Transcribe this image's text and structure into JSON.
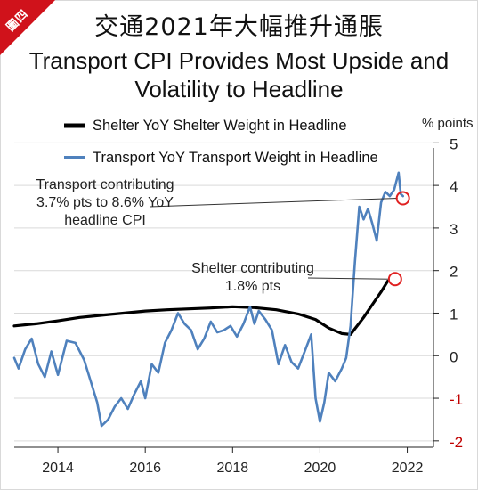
{
  "badge": "圖四",
  "chart_data": {
    "type": "line",
    "title_cn": "交通2021年大幅推升通脹",
    "title": "Transport CPI Provides Most Upside and Volatility to Headline",
    "ylabel": "% points",
    "ylim": [
      -2,
      5
    ],
    "xlim": [
      2013.0,
      2022.6
    ],
    "yticks": [
      "5",
      "4",
      "3",
      "2",
      "1",
      "0",
      "-1",
      "-2"
    ],
    "xticks": [
      "2014",
      "2016",
      "2018",
      "2020",
      "2022"
    ],
    "grid": true,
    "legend_position": "top-left",
    "colors": {
      "shelter": "#000000",
      "transport": "#4f81bd",
      "highlight": "#e02020",
      "negative_tick": "#c00000"
    },
    "series": [
      {
        "name": "Shelter YoY Shelter Weight in Headline",
        "key": "shelter",
        "points": [
          [
            2013.0,
            0.7
          ],
          [
            2013.5,
            0.75
          ],
          [
            2014.0,
            0.82
          ],
          [
            2014.5,
            0.9
          ],
          [
            2015.0,
            0.95
          ],
          [
            2015.5,
            1.0
          ],
          [
            2016.0,
            1.05
          ],
          [
            2016.5,
            1.08
          ],
          [
            2017.0,
            1.1
          ],
          [
            2017.5,
            1.12
          ],
          [
            2018.0,
            1.15
          ],
          [
            2018.5,
            1.13
          ],
          [
            2019.0,
            1.08
          ],
          [
            2019.5,
            0.98
          ],
          [
            2019.9,
            0.85
          ],
          [
            2020.2,
            0.65
          ],
          [
            2020.5,
            0.52
          ],
          [
            2020.7,
            0.5
          ],
          [
            2021.0,
            0.9
          ],
          [
            2021.2,
            1.2
          ],
          [
            2021.4,
            1.5
          ],
          [
            2021.55,
            1.75
          ]
        ]
      },
      {
        "name": "Transport YoY Transport Weight in Headline",
        "key": "transport",
        "points": [
          [
            2013.0,
            -0.05
          ],
          [
            2013.1,
            -0.3
          ],
          [
            2013.25,
            0.15
          ],
          [
            2013.4,
            0.4
          ],
          [
            2013.55,
            -0.2
          ],
          [
            2013.7,
            -0.5
          ],
          [
            2013.85,
            0.1
          ],
          [
            2014.0,
            -0.45
          ],
          [
            2014.2,
            0.35
          ],
          [
            2014.4,
            0.3
          ],
          [
            2014.6,
            -0.1
          ],
          [
            2014.75,
            -0.6
          ],
          [
            2014.9,
            -1.1
          ],
          [
            2015.0,
            -1.65
          ],
          [
            2015.15,
            -1.5
          ],
          [
            2015.3,
            -1.2
          ],
          [
            2015.45,
            -1.0
          ],
          [
            2015.6,
            -1.25
          ],
          [
            2015.75,
            -0.9
          ],
          [
            2015.9,
            -0.6
          ],
          [
            2016.0,
            -1.0
          ],
          [
            2016.15,
            -0.2
          ],
          [
            2016.3,
            -0.4
          ],
          [
            2016.45,
            0.3
          ],
          [
            2016.6,
            0.6
          ],
          [
            2016.75,
            1.0
          ],
          [
            2016.9,
            0.75
          ],
          [
            2017.05,
            0.6
          ],
          [
            2017.2,
            0.15
          ],
          [
            2017.35,
            0.4
          ],
          [
            2017.5,
            0.8
          ],
          [
            2017.65,
            0.55
          ],
          [
            2017.8,
            0.6
          ],
          [
            2017.95,
            0.7
          ],
          [
            2018.1,
            0.45
          ],
          [
            2018.25,
            0.75
          ],
          [
            2018.4,
            1.15
          ],
          [
            2018.5,
            0.75
          ],
          [
            2018.6,
            1.05
          ],
          [
            2018.75,
            0.85
          ],
          [
            2018.9,
            0.6
          ],
          [
            2019.05,
            -0.2
          ],
          [
            2019.2,
            0.25
          ],
          [
            2019.35,
            -0.15
          ],
          [
            2019.5,
            -0.3
          ],
          [
            2019.65,
            0.1
          ],
          [
            2019.8,
            0.5
          ],
          [
            2019.9,
            -1.0
          ],
          [
            2020.0,
            -1.55
          ],
          [
            2020.1,
            -1.1
          ],
          [
            2020.2,
            -0.4
          ],
          [
            2020.35,
            -0.6
          ],
          [
            2020.5,
            -0.3
          ],
          [
            2020.6,
            -0.05
          ],
          [
            2020.7,
            0.7
          ],
          [
            2020.8,
            2.2
          ],
          [
            2020.9,
            3.5
          ],
          [
            2021.0,
            3.2
          ],
          [
            2021.1,
            3.45
          ],
          [
            2021.2,
            3.1
          ],
          [
            2021.3,
            2.7
          ],
          [
            2021.4,
            3.6
          ],
          [
            2021.5,
            3.85
          ],
          [
            2021.6,
            3.75
          ],
          [
            2021.7,
            3.9
          ],
          [
            2021.8,
            4.3
          ],
          [
            2021.85,
            3.8
          ],
          [
            2021.9,
            3.75
          ]
        ]
      }
    ],
    "annotations": [
      {
        "lines": [
          "Transport contributing",
          "3.7% pts to 8.6% YoY",
          "headline CPI"
        ],
        "target": [
          2021.9,
          3.7
        ]
      },
      {
        "lines": [
          "Shelter contributing",
          "1.8% pts"
        ],
        "target": [
          2021.72,
          1.8
        ]
      }
    ]
  }
}
